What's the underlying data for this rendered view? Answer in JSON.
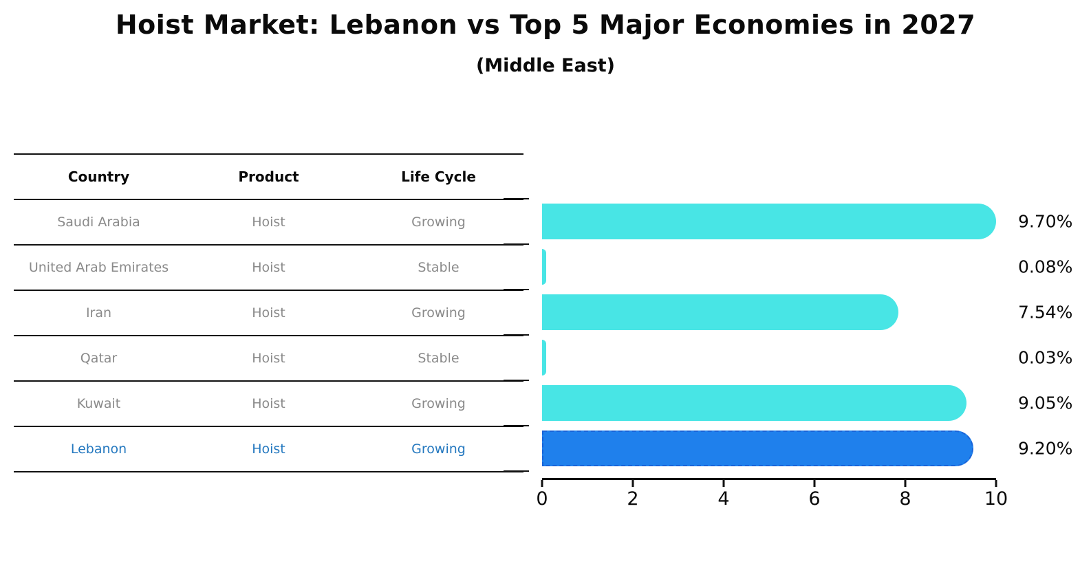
{
  "header": {
    "title": "Hoist Market: Lebanon vs Top 5 Major Economies in 2027",
    "subtitle": "(Middle East)"
  },
  "table": {
    "columns": [
      "Country",
      "Product",
      "Life Cycle"
    ],
    "rows": [
      {
        "country": "Saudi Arabia",
        "product": "Hoist",
        "life_cycle": "Growing",
        "highlight": false
      },
      {
        "country": "United Arab Emirates",
        "product": "Hoist",
        "life_cycle": "Stable",
        "highlight": false
      },
      {
        "country": "Iran",
        "product": "Hoist",
        "life_cycle": "Growing",
        "highlight": false
      },
      {
        "country": "Qatar",
        "product": "Hoist",
        "life_cycle": "Stable",
        "highlight": false
      },
      {
        "country": "Kuwait",
        "product": "Hoist",
        "life_cycle": "Growing",
        "highlight": false
      },
      {
        "country": "Lebanon",
        "product": "Hoist",
        "life_cycle": "Growing",
        "highlight": true
      }
    ]
  },
  "chart_data": {
    "type": "bar",
    "orientation": "horizontal",
    "title": "Hoist Market: Lebanon vs Top 5 Major Economies in 2027 (Middle East)",
    "categories": [
      "Saudi Arabia",
      "United Arab Emirates",
      "Iran",
      "Qatar",
      "Kuwait",
      "Lebanon"
    ],
    "values": [
      9.7,
      0.08,
      7.54,
      0.03,
      9.05,
      9.2
    ],
    "value_labels": [
      "9.70%",
      "0.08%",
      "7.54%",
      "0.03%",
      "9.05%",
      "9.20%"
    ],
    "x_ticks": [
      0,
      2,
      4,
      6,
      8,
      10
    ],
    "xlim": [
      0,
      10
    ],
    "grid": false,
    "legend_position": "none",
    "bar_color": "#48e5e5",
    "highlight_index": 5,
    "highlight_color": "#1f80ec",
    "highlight_border_color": "#1863d8"
  },
  "colors": {
    "row_text": "#8a8a8a",
    "highlight_text": "#2478bf",
    "axis_text": "#0a0a0a"
  }
}
